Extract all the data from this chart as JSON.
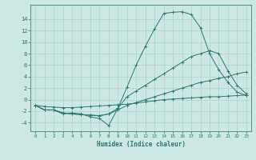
{
  "xlabel": "Humidex (Indice chaleur)",
  "bg_color": "#cde8e4",
  "line_color": "#2a7a6a",
  "grid_color": "#aad4cc",
  "spine_color": "#5a9a8a",
  "xlim": [
    -0.5,
    23.5
  ],
  "ylim": [
    -5.5,
    16.5
  ],
  "xticks": [
    0,
    1,
    2,
    3,
    4,
    5,
    6,
    7,
    8,
    9,
    10,
    11,
    12,
    13,
    14,
    15,
    16,
    17,
    18,
    19,
    20,
    21,
    22,
    23
  ],
  "yticks": [
    -4,
    -2,
    0,
    2,
    4,
    6,
    8,
    10,
    12,
    14
  ],
  "line1_x": [
    0,
    1,
    2,
    3,
    4,
    5,
    6,
    7,
    8,
    9,
    10,
    11,
    12,
    13,
    14,
    15,
    16,
    17,
    18,
    19,
    20,
    21,
    22,
    23
  ],
  "line1_y": [
    -1,
    -1.8,
    -1.8,
    -2.5,
    -2.3,
    -2.5,
    -3.0,
    -3.3,
    -4.5,
    -1.5,
    2.2,
    6.0,
    9.3,
    12.3,
    15.0,
    15.2,
    15.3,
    14.8,
    12.5,
    8.0,
    5.2,
    3.0,
    1.3,
    0.7
  ],
  "line2_x": [
    0,
    1,
    2,
    3,
    4,
    5,
    6,
    7,
    8,
    9,
    10,
    11,
    12,
    13,
    14,
    15,
    16,
    17,
    18,
    19,
    20,
    21,
    22,
    23
  ],
  "line2_y": [
    -1,
    -1.8,
    -1.8,
    -2.3,
    -2.5,
    -2.6,
    -2.7,
    -2.8,
    -2.5,
    -1.5,
    0.5,
    1.5,
    2.5,
    3.5,
    4.5,
    5.5,
    6.5,
    7.5,
    8.0,
    8.5,
    8.0,
    5.0,
    2.5,
    1.0
  ],
  "line3_x": [
    0,
    1,
    2,
    3,
    4,
    5,
    6,
    7,
    8,
    9,
    10,
    11,
    12,
    13,
    14,
    15,
    16,
    17,
    18,
    19,
    20,
    21,
    22,
    23
  ],
  "line3_y": [
    -1,
    -1.8,
    -1.8,
    -2.3,
    -2.5,
    -2.6,
    -2.7,
    -2.8,
    -2.5,
    -1.8,
    -1.0,
    -0.5,
    0.0,
    0.5,
    1.0,
    1.5,
    2.0,
    2.5,
    3.0,
    3.3,
    3.7,
    4.0,
    4.5,
    4.8
  ],
  "line4_x": [
    0,
    1,
    2,
    3,
    4,
    5,
    6,
    7,
    8,
    9,
    10,
    11,
    12,
    13,
    14,
    15,
    16,
    17,
    18,
    19,
    20,
    21,
    22,
    23
  ],
  "line4_y": [
    -1,
    -1.2,
    -1.3,
    -1.4,
    -1.4,
    -1.3,
    -1.2,
    -1.1,
    -1.0,
    -0.9,
    -0.8,
    -0.6,
    -0.4,
    -0.2,
    0.0,
    0.1,
    0.2,
    0.3,
    0.4,
    0.5,
    0.5,
    0.6,
    0.7,
    0.8
  ]
}
